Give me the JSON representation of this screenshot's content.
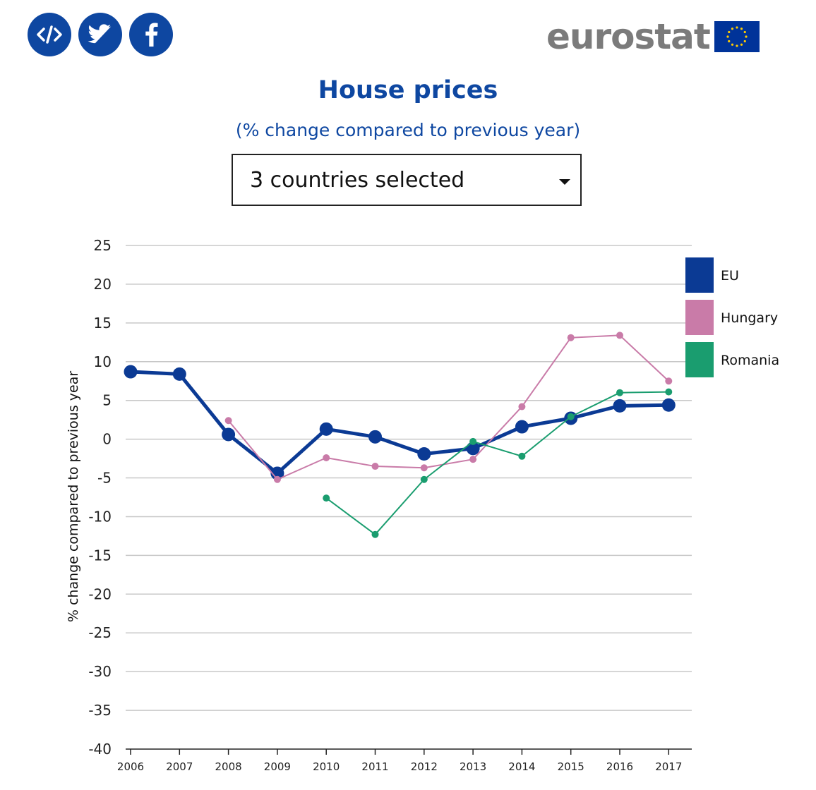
{
  "share": {
    "embed_icon": "embed-code-icon",
    "twitter_icon": "twitter-icon",
    "facebook_icon": "facebook-icon",
    "color": "#0e47a1"
  },
  "logo": {
    "text": "eurostat",
    "flag_icon": "eu-flag-icon"
  },
  "title": "House prices",
  "subtitle": "(% change compared to previous year)",
  "selector": {
    "label": "3 countries selected",
    "icon": "caret-down-icon"
  },
  "chart_data": {
    "type": "line",
    "title": "House prices",
    "subtitle": "(% change compared to previous year)",
    "xlabel": "",
    "ylabel": "% change compared to previous year",
    "categories": [
      "2006",
      "2007",
      "2008",
      "2009",
      "2010",
      "2011",
      "2012",
      "2013",
      "2014",
      "2015",
      "2016",
      "2017"
    ],
    "ylim": [
      -40,
      25
    ],
    "yticks": [
      25,
      20,
      15,
      10,
      5,
      0,
      -5,
      -10,
      -15,
      -20,
      -25,
      -30,
      -35,
      -40
    ],
    "grid": true,
    "legend_position": "right",
    "series": [
      {
        "name": "EU",
        "color": "#0b3a94",
        "values": [
          8.7,
          8.4,
          0.6,
          -4.4,
          1.3,
          0.3,
          -1.9,
          -1.2,
          1.6,
          2.7,
          4.3,
          4.4
        ]
      },
      {
        "name": "Hungary",
        "color": "#c97ba8",
        "values": [
          null,
          null,
          2.4,
          -5.2,
          -2.4,
          -3.5,
          -3.7,
          -2.6,
          4.2,
          13.1,
          13.4,
          7.5
        ]
      },
      {
        "name": "Romania",
        "color": "#1a9d6f",
        "values": [
          null,
          null,
          null,
          null,
          -7.6,
          -12.3,
          -5.2,
          -0.3,
          -2.2,
          2.9,
          6.0,
          6.1
        ]
      }
    ]
  }
}
